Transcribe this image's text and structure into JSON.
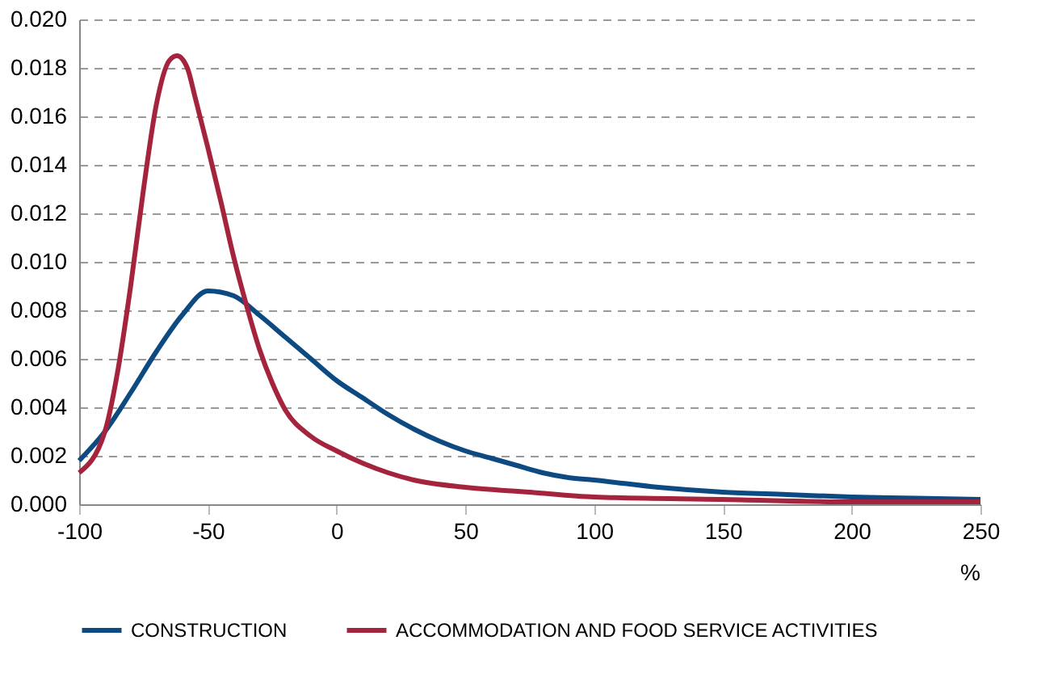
{
  "chart_data": {
    "type": "line",
    "xlabel": "%",
    "xlim": [
      -100,
      250
    ],
    "xticks": [
      -100,
      -50,
      0,
      50,
      100,
      150,
      200,
      250
    ],
    "ylim": [
      0,
      0.02
    ],
    "yticks": [
      {
        "value": 0,
        "label": "0.000"
      },
      {
        "value": 0.002,
        "label": "0.002"
      },
      {
        "value": 0.004,
        "label": "0.004"
      },
      {
        "value": 0.006,
        "label": "0.006"
      },
      {
        "value": 0.008,
        "label": "0.008"
      },
      {
        "value": 0.01,
        "label": "0.010"
      },
      {
        "value": 0.012,
        "label": "0.012"
      },
      {
        "value": 0.014,
        "label": "0.014"
      },
      {
        "value": 0.016,
        "label": "0.016"
      },
      {
        "value": 0.018,
        "label": "0.018"
      },
      {
        "value": 0.02,
        "label": "0.020"
      }
    ],
    "grid": "y",
    "legend": "bottom",
    "marker": "none",
    "line_style": "solid",
    "series": [
      {
        "name": "CONSTRUCTION",
        "color": "#0d4a82",
        "x": [
          -100,
          -90,
          -80,
          -70,
          -60,
          -50,
          -40,
          -30,
          -20,
          -10,
          0,
          10,
          20,
          30,
          40,
          50,
          60,
          70,
          80,
          90,
          100,
          125,
          150,
          175,
          200,
          225,
          250
        ],
        "values": [
          0.0018,
          0.003,
          0.0046,
          0.0063,
          0.0078,
          0.0088,
          0.0086,
          0.0078,
          0.0069,
          0.006,
          0.0051,
          0.0044,
          0.0037,
          0.0031,
          0.0026,
          0.0022,
          0.0019,
          0.0016,
          0.0013,
          0.0011,
          0.001,
          0.0007,
          0.0005,
          0.0004,
          0.0003,
          0.00025,
          0.0002
        ]
      },
      {
        "name": "ACCOMMODATION AND FOOD SERVICE ACTIVITIES",
        "color": "#a5243d",
        "x": [
          -100,
          -90,
          -85,
          -80,
          -75,
          -70,
          -65,
          -62,
          -58,
          -55,
          -50,
          -45,
          -40,
          -35,
          -30,
          -25,
          -20,
          -10,
          0,
          10,
          20,
          30,
          50,
          75,
          100,
          150,
          200,
          250
        ],
        "values": [
          0.0013,
          0.003,
          0.0055,
          0.009,
          0.013,
          0.0165,
          0.0183,
          0.0185,
          0.018,
          0.0168,
          0.0147,
          0.0125,
          0.0102,
          0.0082,
          0.0064,
          0.005,
          0.0039,
          0.0028,
          0.0022,
          0.0017,
          0.0013,
          0.001,
          0.0007,
          0.0005,
          0.0003,
          0.0002,
          0.0001,
          0.0001
        ]
      }
    ]
  }
}
